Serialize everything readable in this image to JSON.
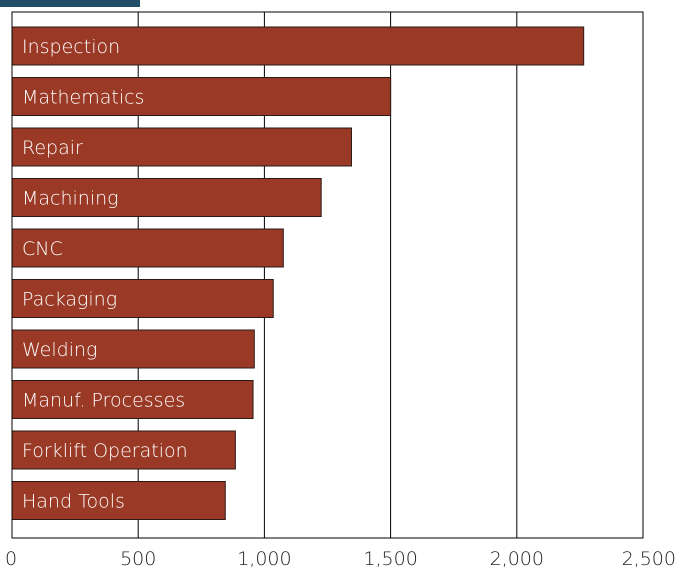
{
  "chart_data": {
    "type": "bar",
    "orientation": "horizontal",
    "title": "",
    "xlabel": "",
    "ylabel": "",
    "categories": [
      "Inspection",
      "Mathematics",
      "Repair",
      "Machining",
      "CNC",
      "Packaging",
      "Welding",
      "Manuf. Processes",
      "Forklift Operation",
      "Hand Tools"
    ],
    "values": [
      2265,
      1500,
      1345,
      1225,
      1075,
      1035,
      960,
      955,
      885,
      845
    ],
    "xlim": [
      0,
      2500
    ],
    "xticks": [
      0,
      500,
      1000,
      1500,
      2000,
      2500
    ],
    "xtick_labels": [
      "0",
      "500",
      "1,000",
      "1,500",
      "2,000",
      "2,500"
    ],
    "grid": "vertical",
    "legend": "none",
    "colors": {
      "bar": "#9a3a26",
      "bar_label": "#ffffff",
      "title_strip": "#1f4e66"
    }
  }
}
